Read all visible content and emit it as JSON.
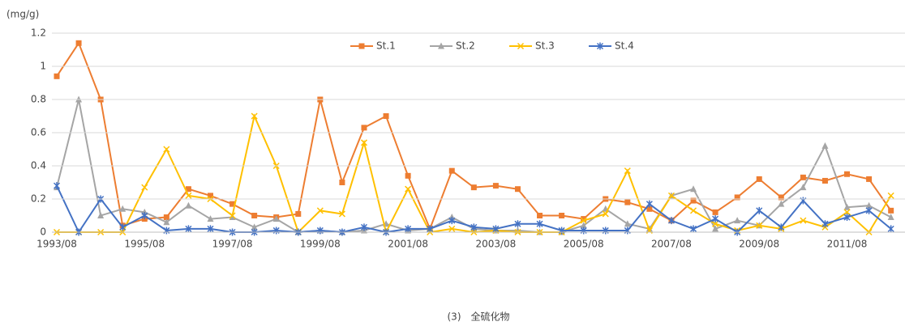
{
  "chart_data": {
    "type": "line",
    "y_axis_label": "(mg/g)",
    "caption": "(3)　全硫化物",
    "categories": [
      "1993/08",
      null,
      null,
      null,
      "1995/08",
      null,
      null,
      null,
      "1997/08",
      null,
      null,
      null,
      "1999/08",
      null,
      null,
      null,
      "2001/08",
      null,
      null,
      null,
      "2003/08",
      null,
      null,
      null,
      "2005/08",
      null,
      null,
      null,
      "2007/08",
      null,
      null,
      null,
      "2009/08",
      null,
      null,
      null,
      "2011/08",
      null,
      null
    ],
    "series": [
      {
        "name": "St.1",
        "color": "#ed7d31",
        "marker": "square",
        "values": [
          0.94,
          1.14,
          0.8,
          0.04,
          0.08,
          0.09,
          0.26,
          0.22,
          0.17,
          0.1,
          0.09,
          0.11,
          0.8,
          0.3,
          0.63,
          0.7,
          0.34,
          0.02,
          0.37,
          0.27,
          0.28,
          0.26,
          0.1,
          0.1,
          0.08,
          0.2,
          0.18,
          0.14,
          0.07,
          0.19,
          0.12,
          0.21,
          0.32,
          0.21,
          0.33,
          0.31,
          0.35,
          0.32,
          0.13
        ]
      },
      {
        "name": "St.2",
        "color": "#a5a5a5",
        "marker": "triangle",
        "values": [
          0.27,
          0.8,
          0.1,
          0.14,
          0.12,
          0.06,
          0.16,
          0.08,
          0.09,
          0.03,
          0.08,
          0,
          0.01,
          0,
          0.01,
          0.05,
          0.01,
          0.02,
          0.09,
          0.02,
          0.01,
          0.01,
          0,
          0,
          0.04,
          0.14,
          0.05,
          0.02,
          0.22,
          0.26,
          0.02,
          0.07,
          0.04,
          0.17,
          0.27,
          0.52,
          0.15,
          0.16,
          0.09
        ]
      },
      {
        "name": "St.3",
        "color": "#ffc000",
        "marker": "x",
        "values": [
          0,
          0,
          0,
          0,
          0.27,
          0.5,
          0.22,
          0.2,
          0.1,
          0.7,
          0.4,
          0,
          0.13,
          0.11,
          0.54,
          0,
          0.26,
          0,
          0.02,
          0,
          0.01,
          0,
          0,
          0,
          0.07,
          0.11,
          0.37,
          0.01,
          0.22,
          0.13,
          0.05,
          0.01,
          0.04,
          0.02,
          0.07,
          0.03,
          0.12,
          0,
          0.22
        ]
      },
      {
        "name": "St.4",
        "color": "#4472c4",
        "marker": "star",
        "values": [
          0.28,
          0,
          0.2,
          0.03,
          0.1,
          0.01,
          0.02,
          0.02,
          0,
          0,
          0.01,
          0,
          0.01,
          0,
          0.03,
          0,
          0.02,
          0.02,
          0.07,
          0.03,
          0.02,
          0.05,
          0.05,
          0.01,
          0.01,
          0.01,
          0.01,
          0.17,
          0.07,
          0.02,
          0.08,
          0,
          0.13,
          0.03,
          0.19,
          0.05,
          0.09,
          0.13,
          0.02
        ]
      }
    ],
    "ylim": [
      0,
      1.2
    ],
    "yticks": [
      0,
      0.2,
      0.4,
      0.6,
      0.8,
      1,
      1.2
    ],
    "grid": true,
    "legend": "top"
  }
}
